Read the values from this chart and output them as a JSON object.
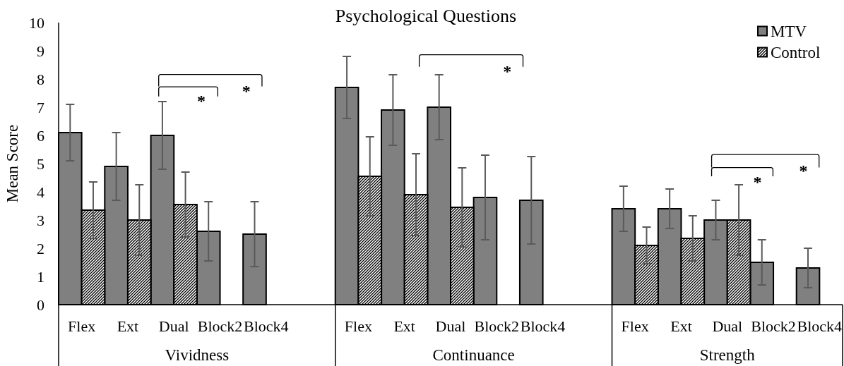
{
  "chart_data": [
    {
      "type": "bar",
      "xlabel": "Vividness",
      "ylabel": "Mean Score",
      "categories": [
        "Flex",
        "Ext",
        "Dual",
        "Block2",
        "Block4",
        null
      ],
      "series": [
        {
          "color": "#808080",
          "values": [
            6.1,
            4.9,
            6.0,
            2.6,
            2.5,
            null
          ],
          "errors": [
            1.0,
            1.2,
            1.2,
            1.05,
            1.15,
            null
          ]
        },
        {
          "color": "#000000",
          "values": [
            3.35,
            3.0,
            3.55,
            null,
            null,
            null
          ],
          "errors": [
            1.0,
            1.25,
            1.15,
            null,
            null,
            null
          ]
        }
      ],
      "ylim": [
        0,
        10
      ],
      "yticks": [
        0,
        1,
        2,
        3,
        4,
        5,
        6,
        7,
        8,
        9,
        10
      ],
      "annotations": [
        "*",
        "*"
      ]
    },
    {
      "type": "bar",
      "title": "Psychological Questions",
      "xlabel": "Continuance",
      "categories": [
        "Flex",
        "Ext",
        "Dual",
        "Block2",
        "Block4",
        null
      ],
      "series": [
        {
          "color": "#808080",
          "values": [
            7.7,
            6.9,
            7.0,
            3.8,
            3.7,
            null
          ],
          "errors": [
            1.1,
            1.25,
            1.15,
            1.5,
            1.55,
            null
          ]
        },
        {
          "color": "#000000",
          "values": [
            4.55,
            3.9,
            3.45,
            null,
            null,
            null
          ],
          "errors": [
            1.4,
            1.45,
            1.4,
            null,
            null,
            null
          ]
        }
      ],
      "ylim": [
        0,
        10
      ],
      "tick_labels": "x",
      "annotations": [
        "*"
      ]
    },
    {
      "type": "bar",
      "xlabel": "Strength",
      "categories": [
        "Flex",
        "Ext",
        "Dual",
        "Block2",
        "Block4"
      ],
      "series": [
        {
          "name": "MTV",
          "color": "#808080",
          "values": [
            3.4,
            3.4,
            3.0,
            1.5,
            1.3
          ],
          "errors": [
            0.8,
            0.7,
            0.7,
            0.8,
            0.7
          ]
        },
        {
          "name": "Control",
          "color": "#000000",
          "values": [
            2.1,
            2.35,
            3.0,
            null,
            null
          ],
          "errors": [
            0.65,
            0.8,
            1.25,
            null,
            null
          ]
        }
      ],
      "ylim": [
        0,
        10
      ],
      "tick_labels": "x",
      "legend": "top right",
      "annotations": [
        "*",
        "*"
      ]
    }
  ]
}
